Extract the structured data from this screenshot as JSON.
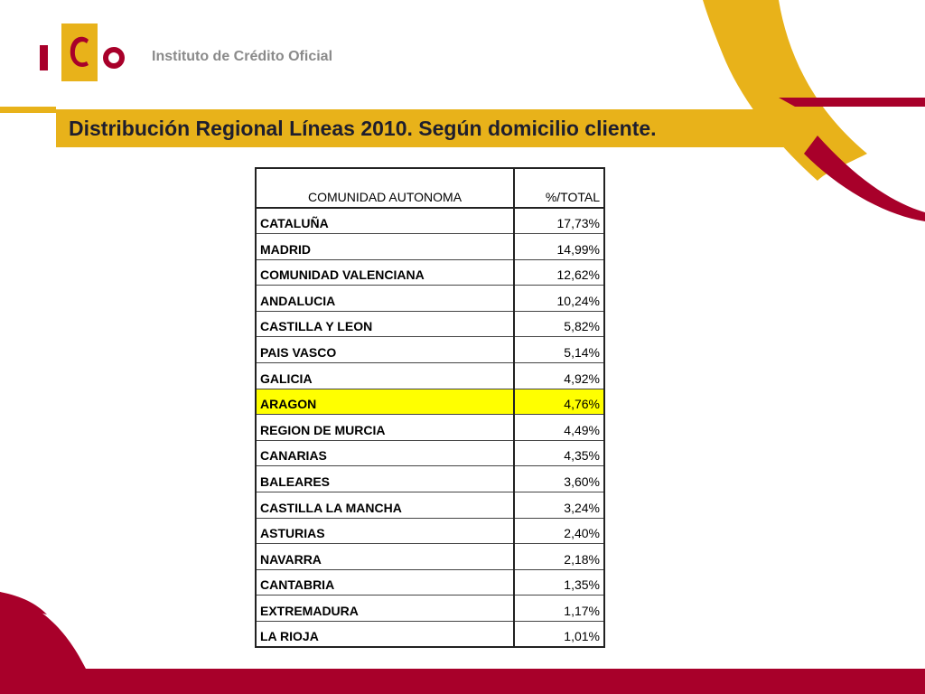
{
  "header": {
    "logo_text": "Instituto de Crédito Oficial",
    "logo_letters": "ICO",
    "brand_red": "#a8002a",
    "brand_gold": "#e8b21a"
  },
  "title": "Distribución Regional Líneas 2010. Según domicilio cliente.",
  "table": {
    "columns": [
      "COMUNIDAD AUTONOMA",
      "%/TOTAL"
    ],
    "highlight_color": "#ffff00",
    "rows": [
      {
        "name": "CATALUÑA",
        "value": "17,73%",
        "highlight": false
      },
      {
        "name": "MADRID",
        "value": "14,99%",
        "highlight": false
      },
      {
        "name": "COMUNIDAD VALENCIANA",
        "value": "12,62%",
        "highlight": false
      },
      {
        "name": "ANDALUCIA",
        "value": "10,24%",
        "highlight": false
      },
      {
        "name": "CASTILLA Y LEON",
        "value": "5,82%",
        "highlight": false
      },
      {
        "name": "PAIS VASCO",
        "value": "5,14%",
        "highlight": false
      },
      {
        "name": "GALICIA",
        "value": "4,92%",
        "highlight": false
      },
      {
        "name": "ARAGON",
        "value": "4,76%",
        "highlight": true
      },
      {
        "name": "REGION DE MURCIA",
        "value": "4,49%",
        "highlight": false
      },
      {
        "name": "CANARIAS",
        "value": "4,35%",
        "highlight": false
      },
      {
        "name": "BALEARES",
        "value": "3,60%",
        "highlight": false
      },
      {
        "name": "CASTILLA LA MANCHA",
        "value": "3,24%",
        "highlight": false
      },
      {
        "name": "ASTURIAS",
        "value": "2,40%",
        "highlight": false
      },
      {
        "name": "NAVARRA",
        "value": "2,18%",
        "highlight": false
      },
      {
        "name": "CANTABRIA",
        "value": "1,35%",
        "highlight": false
      },
      {
        "name": "EXTREMADURA",
        "value": "1,17%",
        "highlight": false
      },
      {
        "name": "LA RIOJA",
        "value": "1,01%",
        "highlight": false
      }
    ]
  }
}
